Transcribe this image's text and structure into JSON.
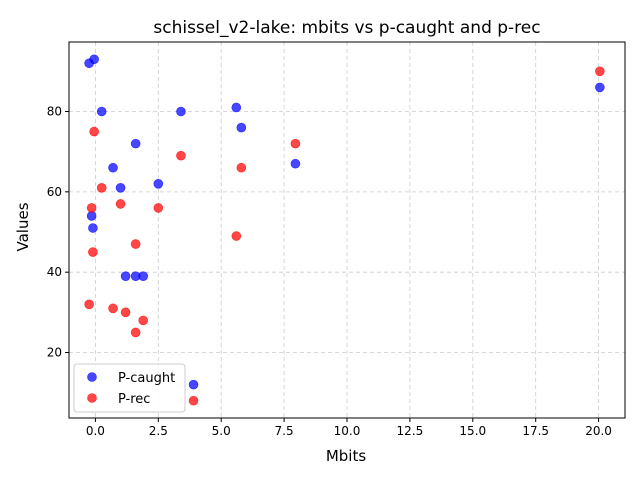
{
  "chart_data": {
    "type": "scatter",
    "title": "schissel_v2-lake: mbits vs p-caught and p-rec",
    "xlabel": "Mbits",
    "ylabel": "Values",
    "xlim": [
      -1.05,
      21.05
    ],
    "ylim": [
      3.7,
      97.3
    ],
    "xticks": [
      0.0,
      2.5,
      5.0,
      7.5,
      10.0,
      12.5,
      15.0,
      17.5,
      20.0
    ],
    "xtick_labels": [
      "0.0",
      "2.5",
      "5.0",
      "7.5",
      "10.0",
      "12.5",
      "15.0",
      "17.5",
      "20.0"
    ],
    "yticks": [
      20,
      40,
      60,
      80
    ],
    "ytick_labels": [
      "20",
      "40",
      "60",
      "80"
    ],
    "grid": true,
    "legend_position": "bottom-left",
    "series": [
      {
        "name": "P-caught",
        "color": "#0000ff",
        "x": [
          -0.25,
          -0.05,
          0.25,
          -0.15,
          -0.1,
          0.7,
          1.0,
          1.2,
          1.6,
          1.9,
          1.6,
          2.5,
          3.4,
          3.9,
          5.6,
          5.8,
          7.95,
          20.05
        ],
        "y": [
          92,
          93,
          80,
          54,
          51,
          66,
          61,
          39,
          39,
          39,
          72,
          62,
          80,
          12,
          81,
          76,
          67,
          86
        ]
      },
      {
        "name": "P-rec",
        "color": "#ff0000",
        "x": [
          -0.05,
          0.25,
          -0.15,
          -0.1,
          -0.25,
          0.7,
          1.0,
          1.2,
          1.6,
          1.6,
          1.9,
          2.5,
          3.4,
          3.9,
          5.6,
          5.8,
          7.95,
          20.05
        ],
        "y": [
          75,
          61,
          56,
          45,
          32,
          31,
          57,
          30,
          47,
          25,
          28,
          56,
          69,
          8,
          49,
          66,
          72,
          90
        ]
      }
    ]
  }
}
